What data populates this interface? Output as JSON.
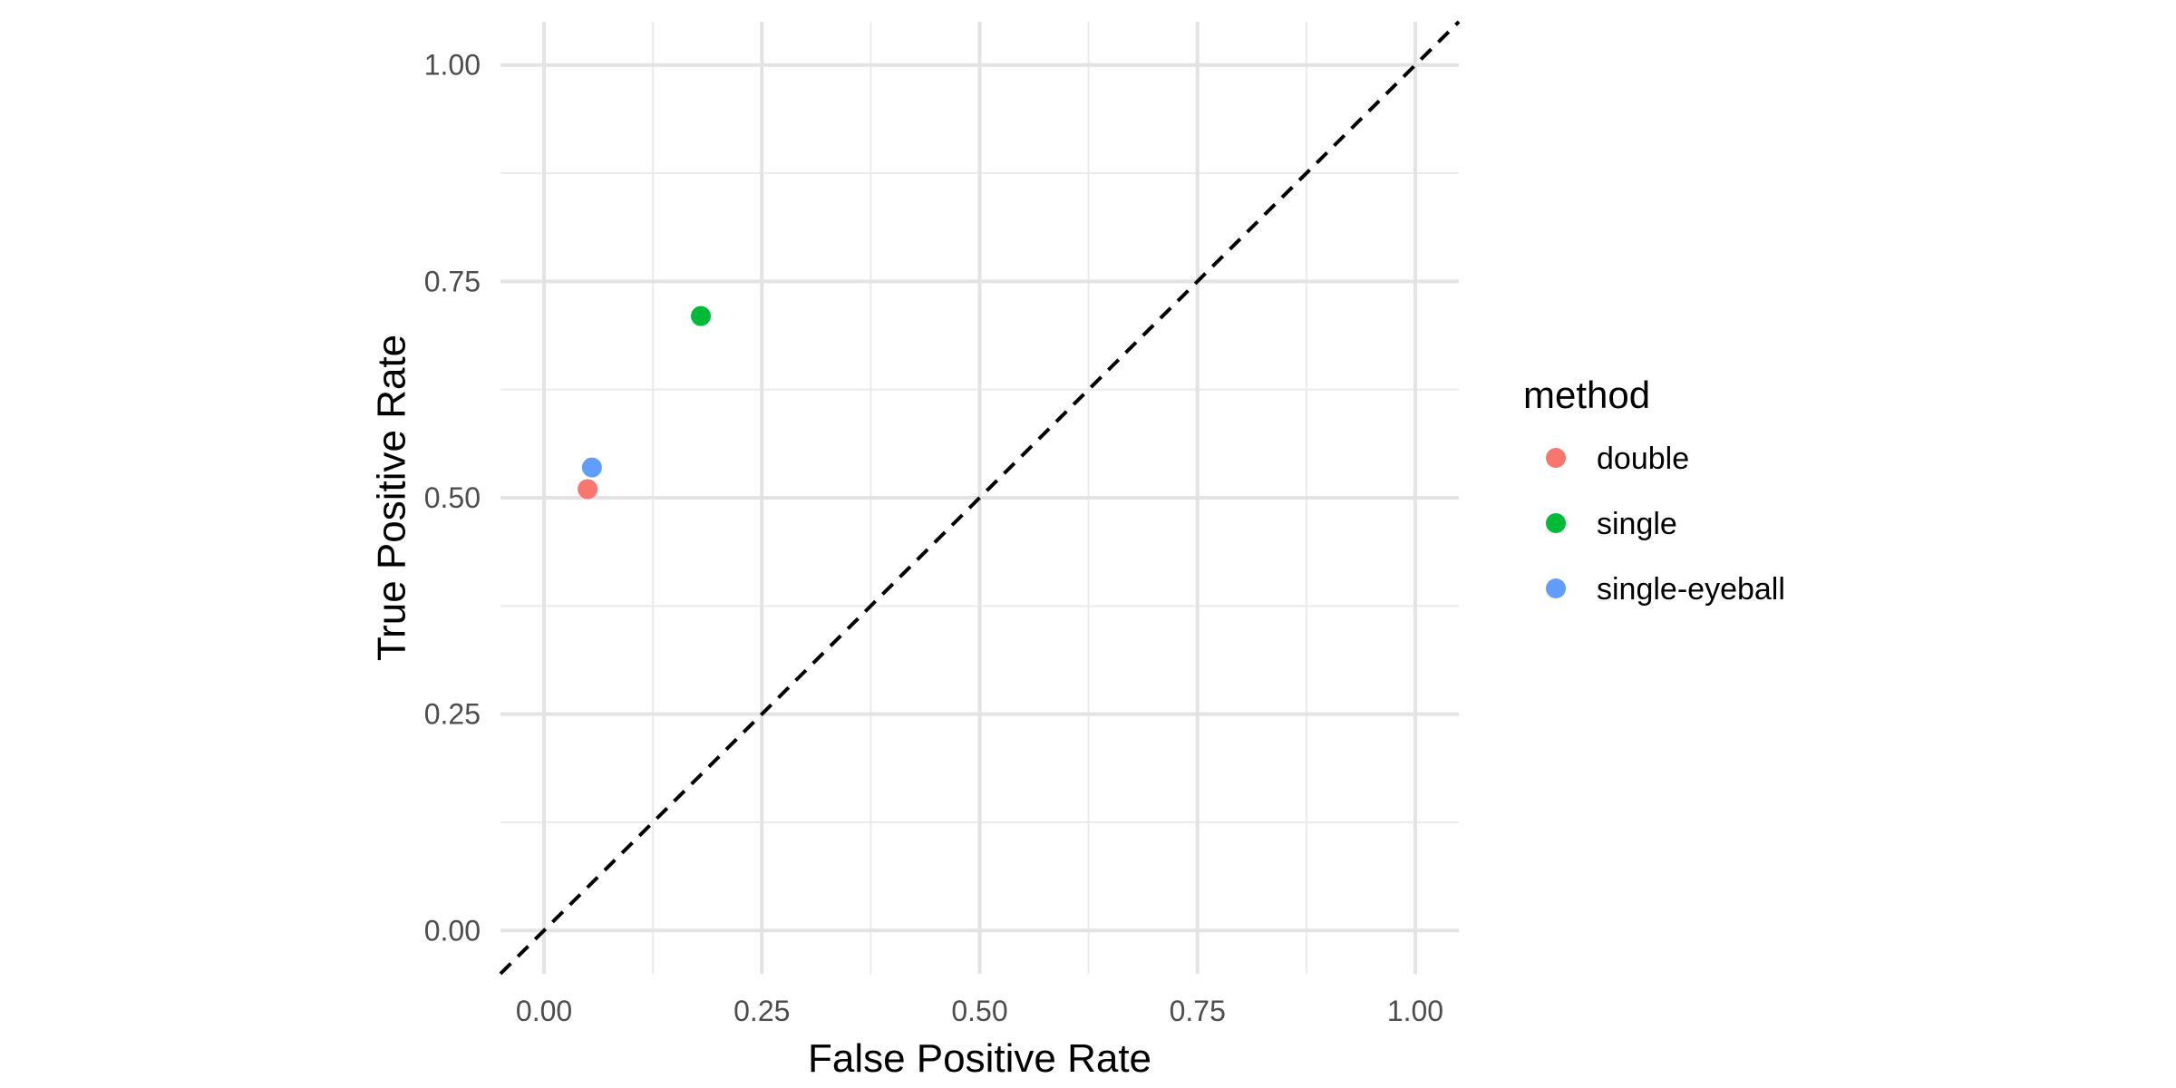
{
  "chart_data": {
    "type": "scatter",
    "xlabel": "False Positive Rate",
    "ylabel": "True Positive Rate",
    "xlim": [
      -0.05,
      1.05
    ],
    "ylim": [
      -0.05,
      1.05
    ],
    "x_ticks": [
      0.0,
      0.25,
      0.5,
      0.75,
      1.0
    ],
    "x_tick_labels": [
      "0.00",
      "0.25",
      "0.50",
      "0.75",
      "1.00"
    ],
    "y_ticks": [
      0.0,
      0.25,
      0.5,
      0.75,
      1.0
    ],
    "y_tick_labels": [
      "0.00",
      "0.25",
      "0.50",
      "0.75",
      "1.00"
    ],
    "grid": true,
    "reference_line": {
      "style": "dashed",
      "slope": 1,
      "intercept": 0,
      "color": "#000000"
    },
    "legend": {
      "title": "method",
      "placement": "right"
    },
    "series": [
      {
        "name": "double",
        "color": "#F8766D",
        "x": [
          0.05
        ],
        "y": [
          0.51
        ]
      },
      {
        "name": "single",
        "color": "#00BA38",
        "x": [
          0.18
        ],
        "y": [
          0.71
        ]
      },
      {
        "name": "single-eyeball",
        "color": "#619CFF",
        "x": [
          0.055
        ],
        "y": [
          0.535
        ]
      }
    ]
  }
}
